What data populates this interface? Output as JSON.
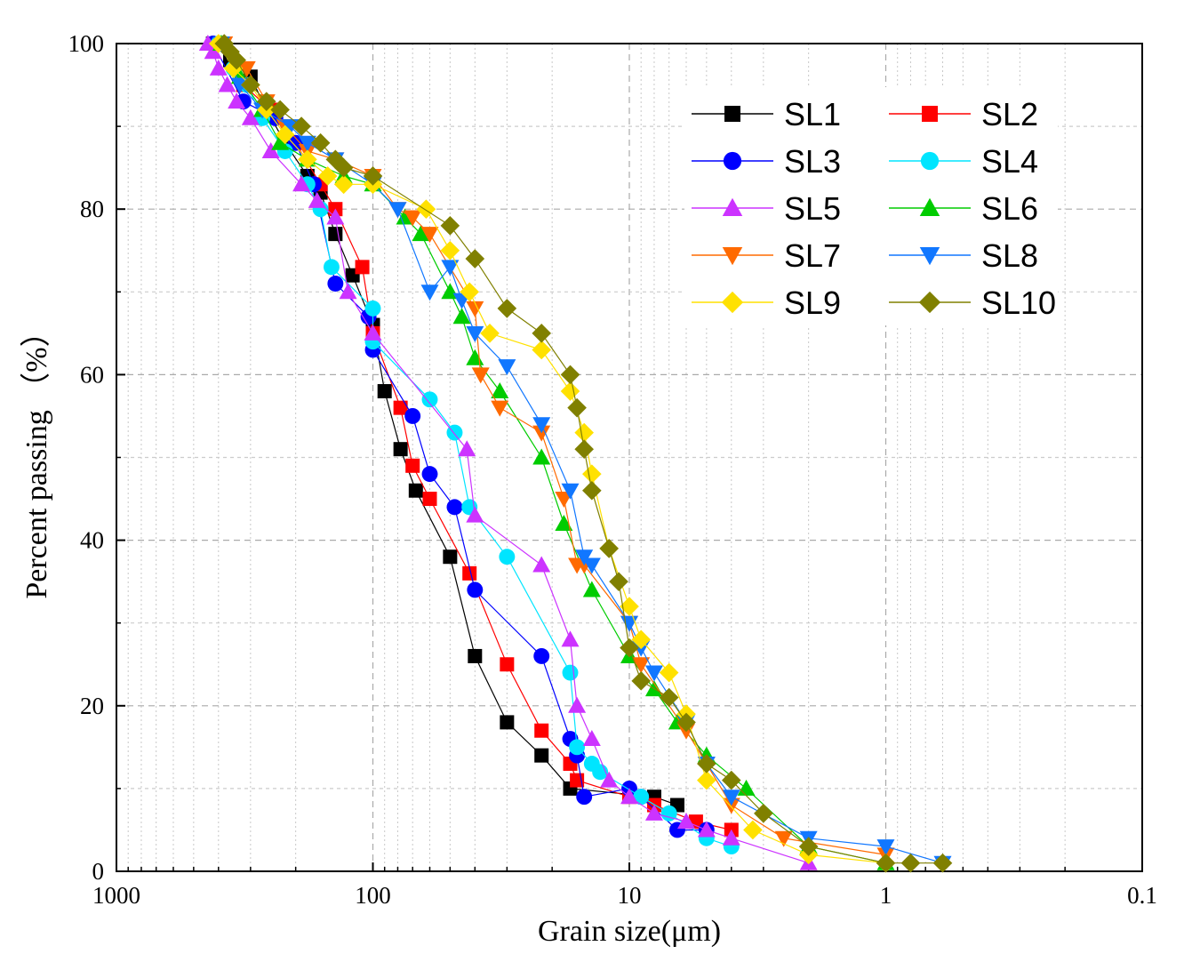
{
  "chart_data": {
    "type": "line",
    "title": "",
    "xlabel": "Grain size(μm)",
    "ylabel": "Percent passing （%）",
    "x_scale": "log",
    "x_reversed": true,
    "xlim": [
      1000,
      0.1
    ],
    "ylim": [
      0,
      100
    ],
    "x_ticks": [
      {
        "value": 1000,
        "label": "1000"
      },
      {
        "value": 100,
        "label": "100"
      },
      {
        "value": 10,
        "label": "10"
      },
      {
        "value": 1,
        "label": "1"
      },
      {
        "value": 0.1,
        "label": "0.1"
      }
    ],
    "y_ticks": [
      {
        "value": 0,
        "label": "0"
      },
      {
        "value": 20,
        "label": "20"
      },
      {
        "value": 40,
        "label": "40"
      },
      {
        "value": 60,
        "label": "60"
      },
      {
        "value": 80,
        "label": "80"
      },
      {
        "value": 100,
        "label": "100"
      }
    ],
    "grid": true,
    "legend_position": "top-right",
    "series": [
      {
        "name": "SL1",
        "color": "#000000",
        "marker": "square",
        "x": [
          420,
          360,
          300,
          260,
          220,
          180,
          160,
          140,
          120,
          100,
          90,
          78,
          68,
          50,
          40,
          30,
          22,
          17,
          8,
          6.5
        ],
        "y": [
          100,
          98,
          96,
          92,
          88,
          84,
          82,
          77,
          72,
          66,
          58,
          51,
          46,
          38,
          26,
          18,
          14,
          10,
          9,
          8
        ]
      },
      {
        "name": "SL2",
        "color": "#ff0000",
        "marker": "square",
        "x": [
          400,
          320,
          250,
          200,
          160,
          140,
          110,
          100,
          78,
          70,
          60,
          42,
          30,
          22,
          17,
          16,
          10,
          8,
          5.5,
          4
        ],
        "y": [
          100,
          95,
          92,
          88,
          83,
          80,
          73,
          65,
          56,
          49,
          45,
          36,
          25,
          17,
          13,
          11,
          9,
          8,
          6,
          5
        ]
      },
      {
        "name": "SL3",
        "color": "#0000ff",
        "marker": "circle",
        "x": [
          420,
          320,
          240,
          200,
          170,
          140,
          104,
          100,
          70,
          60,
          48,
          40,
          22,
          17,
          16,
          15,
          10,
          9,
          6.5,
          5
        ],
        "y": [
          100,
          93,
          91,
          88,
          83,
          71,
          67,
          63,
          55,
          48,
          44,
          34,
          26,
          16,
          14,
          9,
          10,
          9,
          5,
          5
        ]
      },
      {
        "name": "SL4",
        "color": "#00e5ff",
        "marker": "circle",
        "x": [
          400,
          350,
          310,
          270,
          220,
          180,
          160,
          145,
          100,
          100,
          60,
          48,
          42,
          30,
          17,
          16,
          14,
          13,
          9,
          7,
          5,
          4
        ],
        "y": [
          100,
          97,
          95,
          91,
          87,
          83,
          80,
          73,
          68,
          64,
          57,
          53,
          44,
          38,
          24,
          15,
          13,
          12,
          9,
          7,
          4,
          3
        ]
      },
      {
        "name": "SL5",
        "color": "#cc33ff",
        "marker": "triangle",
        "x": [
          440,
          420,
          400,
          370,
          340,
          300,
          250,
          190,
          165,
          140,
          125,
          100,
          43,
          40,
          22,
          17,
          16,
          14,
          12,
          10,
          8,
          6,
          5,
          4,
          2
        ],
        "y": [
          100,
          99,
          97,
          95,
          93,
          91,
          87,
          83,
          81,
          79,
          70,
          65,
          51,
          43,
          37,
          28,
          20,
          16,
          11,
          9,
          7,
          6,
          5,
          4,
          1
        ]
      },
      {
        "name": "SL6",
        "color": "#00cc00",
        "marker": "triangle",
        "x": [
          390,
          330,
          270,
          230,
          180,
          130,
          100,
          75,
          65,
          50,
          45,
          40,
          32,
          22,
          18,
          14,
          10,
          8,
          6.5,
          5,
          3.5,
          2,
          1
        ],
        "y": [
          100,
          96,
          92,
          88,
          86,
          84,
          83,
          79,
          77,
          70,
          67,
          62,
          58,
          50,
          42,
          34,
          26,
          22,
          18,
          14,
          10,
          3,
          1
        ]
      },
      {
        "name": "SL7",
        "color": "#ff6a00",
        "marker": "triangle-down",
        "x": [
          380,
          310,
          260,
          220,
          180,
          140,
          100,
          80,
          70,
          60,
          40,
          38,
          32,
          22,
          18,
          16,
          15,
          10,
          9,
          6,
          5,
          4,
          2.5,
          1
        ],
        "y": [
          100,
          97,
          93,
          90,
          87,
          86,
          84,
          80,
          79,
          77,
          68,
          60,
          56,
          53,
          45,
          37,
          37,
          30,
          25,
          17,
          13,
          8,
          4,
          2
        ]
      },
      {
        "name": "SL8",
        "color": "#1177ff",
        "marker": "triangle-down",
        "x": [
          390,
          330,
          270,
          210,
          180,
          140,
          100,
          80,
          60,
          50,
          45,
          40,
          30,
          22,
          17,
          15,
          14,
          10,
          9,
          8,
          6,
          5,
          4,
          2,
          1,
          0.6
        ],
        "y": [
          100,
          95,
          92,
          90,
          88,
          86,
          83,
          80,
          70,
          73,
          69,
          65,
          61,
          54,
          46,
          38,
          37,
          30,
          27,
          24,
          18,
          13,
          9,
          4,
          3,
          1
        ]
      },
      {
        "name": "SL9",
        "color": "#ffe100",
        "marker": "diamond",
        "x": [
          400,
          350,
          300,
          260,
          220,
          180,
          150,
          130,
          100,
          62,
          50,
          42,
          35,
          22,
          17,
          15,
          14,
          12,
          10,
          9,
          7,
          6,
          5,
          3.3,
          2,
          1
        ],
        "y": [
          100,
          97,
          95,
          92,
          89,
          86,
          84,
          83,
          83,
          80,
          75,
          70,
          65,
          63,
          58,
          53,
          48,
          39,
          32,
          28,
          24,
          19,
          11,
          5,
          2,
          1
        ]
      },
      {
        "name": "SL10",
        "color": "#808000",
        "marker": "diamond",
        "x": [
          380,
          360,
          340,
          300,
          260,
          230,
          190,
          160,
          140,
          130,
          100,
          50,
          40,
          30,
          22,
          17,
          16,
          15,
          14,
          12,
          11,
          10,
          9,
          7,
          6,
          5,
          4,
          3,
          2,
          1,
          0.8,
          0.6
        ],
        "y": [
          100,
          99,
          98,
          95,
          93,
          92,
          90,
          88,
          86,
          85,
          84,
          78,
          74,
          68,
          65,
          60,
          56,
          51,
          46,
          39,
          35,
          27,
          23,
          21,
          18,
          13,
          11,
          7,
          3,
          1,
          1,
          1
        ]
      }
    ]
  }
}
